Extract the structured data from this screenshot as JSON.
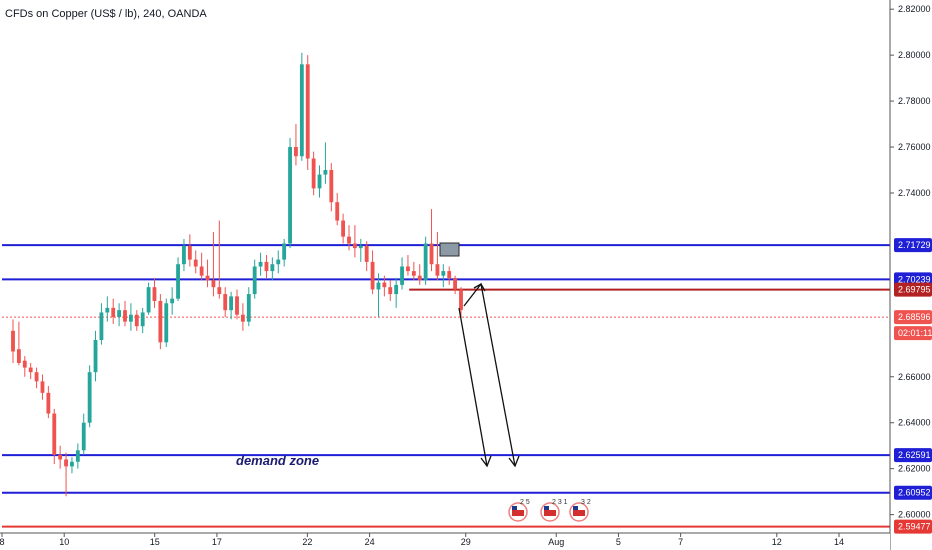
{
  "chart_data": {
    "type": "candlestick",
    "title": "CFDs on Copper (US$ / lb), 240, OANDA",
    "ylim": [
      2.592,
      2.824
    ],
    "xlim": [
      0,
      148
    ],
    "y_ticks": [
      "2.82000",
      "2.80000",
      "2.78000",
      "2.76000",
      "2.74000",
      "2.66000",
      "2.64000",
      "2.62000",
      "2.60000"
    ],
    "x_ticks": [
      {
        "label": "8",
        "x": 0
      },
      {
        "label": "10",
        "x": 11
      },
      {
        "label": "15",
        "x": 27
      },
      {
        "label": "17",
        "x": 38
      },
      {
        "label": "22",
        "x": 54
      },
      {
        "label": "24",
        "x": 65
      },
      {
        "label": "29",
        "x": 82
      },
      {
        "label": "Aug",
        "x": 98
      },
      {
        "label": "5",
        "x": 109
      },
      {
        "label": "7",
        "x": 120
      },
      {
        "label": "12",
        "x": 137
      },
      {
        "label": "14",
        "x": 148
      }
    ],
    "levels": [
      {
        "price": 2.71729,
        "label": "2.71729",
        "color": "#1f1fd6",
        "style": "solid",
        "x_start": 0
      },
      {
        "price": 2.70239,
        "label": "2.70239",
        "color": "#1f1fd6",
        "style": "solid",
        "x_start": 0
      },
      {
        "price": 2.69795,
        "label": "2.69795",
        "color": "#b22222",
        "style": "solid",
        "x_start": 72
      },
      {
        "price": 2.68596,
        "label": "2.68596",
        "color": "#ef5350",
        "style": "dotted",
        "x_start": 0
      },
      {
        "price": 2.62591,
        "label": "2.62591",
        "color": "#1f1fd6",
        "style": "solid",
        "x_start": 0
      },
      {
        "price": 2.60952,
        "label": "2.60952",
        "color": "#1f1fd6",
        "style": "solid",
        "x_start": 0
      },
      {
        "price": 2.59477,
        "label": "2.59477",
        "color": "#e53935",
        "style": "solid",
        "x_start": 0
      }
    ],
    "countdown": "02:01:11",
    "annotation": "demand zone",
    "events": [
      "2 5",
      "2 3 1",
      "3 2"
    ],
    "candles": [
      [
        2.68,
        2.685,
        2.666,
        2.671
      ],
      [
        2.672,
        2.684,
        2.665,
        2.666
      ],
      [
        2.667,
        2.669,
        2.66,
        2.664
      ],
      [
        2.664,
        2.666,
        2.659,
        2.662
      ],
      [
        2.662,
        2.664,
        2.655,
        2.658
      ],
      [
        2.658,
        2.661,
        2.65,
        2.653
      ],
      [
        2.653,
        2.656,
        2.642,
        2.644
      ],
      [
        2.644,
        2.646,
        2.622,
        2.626
      ],
      [
        2.626,
        2.63,
        2.62,
        2.624
      ],
      [
        2.624,
        2.627,
        2.608,
        2.621
      ],
      [
        2.621,
        2.625,
        2.618,
        2.623
      ],
      [
        2.623,
        2.631,
        2.62,
        2.628
      ],
      [
        2.628,
        2.644,
        2.626,
        2.64
      ],
      [
        2.64,
        2.665,
        2.638,
        2.662
      ],
      [
        2.662,
        2.68,
        2.658,
        2.676
      ],
      [
        2.676,
        2.692,
        2.674,
        2.688
      ],
      [
        2.688,
        2.695,
        2.684,
        2.69
      ],
      [
        2.69,
        2.694,
        2.683,
        2.686
      ],
      [
        2.686,
        2.692,
        2.682,
        2.689
      ],
      [
        2.689,
        2.693,
        2.682,
        2.684
      ],
      [
        2.684,
        2.692,
        2.68,
        2.687
      ],
      [
        2.687,
        2.689,
        2.68,
        2.682
      ],
      [
        2.682,
        2.69,
        2.679,
        2.688
      ],
      [
        2.688,
        2.701,
        2.687,
        2.699
      ],
      [
        2.699,
        2.703,
        2.69,
        2.693
      ],
      [
        2.693,
        2.696,
        2.672,
        2.675
      ],
      [
        2.675,
        2.694,
        2.673,
        2.692
      ],
      [
        2.692,
        2.699,
        2.687,
        2.694
      ],
      [
        2.694,
        2.712,
        2.693,
        2.709
      ],
      [
        2.709,
        2.72,
        2.706,
        2.717
      ],
      [
        2.717,
        2.722,
        2.708,
        2.711
      ],
      [
        2.711,
        2.715,
        2.705,
        2.708
      ],
      [
        2.708,
        2.714,
        2.702,
        2.704
      ],
      [
        2.704,
        2.711,
        2.699,
        2.702
      ],
      [
        2.702,
        2.723,
        2.695,
        2.699
      ],
      [
        2.699,
        2.728,
        2.694,
        2.696
      ],
      [
        2.696,
        2.699,
        2.686,
        2.689
      ],
      [
        2.689,
        2.697,
        2.685,
        2.695
      ],
      [
        2.695,
        2.698,
        2.685,
        2.687
      ],
      [
        2.687,
        2.692,
        2.68,
        2.684
      ],
      [
        2.684,
        2.699,
        2.682,
        2.696
      ],
      [
        2.696,
        2.711,
        2.694,
        2.708
      ],
      [
        2.708,
        2.714,
        2.704,
        2.71
      ],
      [
        2.71,
        2.713,
        2.703,
        2.706
      ],
      [
        2.706,
        2.712,
        2.702,
        2.709
      ],
      [
        2.709,
        2.715,
        2.705,
        2.711
      ],
      [
        2.711,
        2.72,
        2.708,
        2.718
      ],
      [
        2.718,
        2.764,
        2.716,
        2.76
      ],
      [
        2.76,
        2.77,
        2.752,
        2.756
      ],
      [
        2.756,
        2.801,
        2.754,
        2.796
      ],
      [
        2.796,
        2.8,
        2.75,
        2.755
      ],
      [
        2.755,
        2.758,
        2.739,
        2.742
      ],
      [
        2.742,
        2.752,
        2.738,
        2.748
      ],
      [
        2.748,
        2.762,
        2.744,
        2.75
      ],
      [
        2.75,
        2.753,
        2.732,
        2.736
      ],
      [
        2.736,
        2.74,
        2.726,
        2.728
      ],
      [
        2.728,
        2.731,
        2.718,
        2.721
      ],
      [
        2.721,
        2.726,
        2.715,
        2.718
      ],
      [
        2.718,
        2.726,
        2.712,
        2.716
      ],
      [
        2.716,
        2.72,
        2.71,
        2.717
      ],
      [
        2.717,
        2.719,
        2.706,
        2.71
      ],
      [
        2.71,
        2.715,
        2.696,
        2.698
      ],
      [
        2.698,
        2.705,
        2.686,
        2.701
      ],
      [
        2.701,
        2.704,
        2.695,
        2.699
      ],
      [
        2.699,
        2.702,
        2.693,
        2.696
      ],
      [
        2.696,
        2.703,
        2.69,
        2.7
      ],
      [
        2.7,
        2.712,
        2.698,
        2.708
      ],
      [
        2.708,
        2.713,
        2.704,
        2.706
      ],
      [
        2.706,
        2.71,
        2.702,
        2.704
      ],
      [
        2.704,
        2.709,
        2.7,
        2.702
      ],
      [
        2.702,
        2.721,
        2.7,
        2.718
      ],
      [
        2.718,
        2.733,
        2.706,
        2.709
      ],
      [
        2.709,
        2.723,
        2.702,
        2.704
      ],
      [
        2.704,
        2.709,
        2.699,
        2.706
      ],
      [
        2.706,
        2.708,
        2.7,
        2.703
      ],
      [
        2.703,
        2.704,
        2.696,
        2.698
      ],
      [
        2.698,
        2.699,
        2.686,
        2.689
      ]
    ]
  }
}
